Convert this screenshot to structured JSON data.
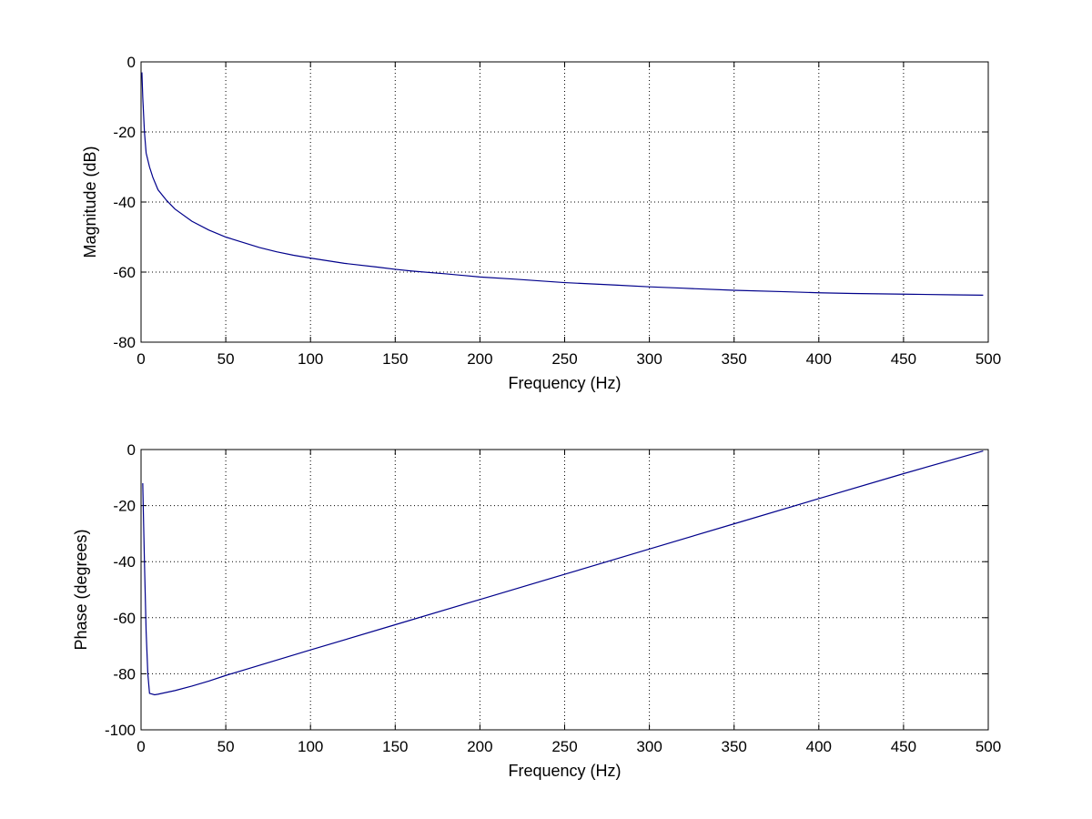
{
  "chart_data": [
    {
      "type": "line",
      "xlabel": "Frequency (Hz)",
      "ylabel": "Magnitude (dB)",
      "xlim": [
        0,
        500
      ],
      "ylim": [
        -80,
        0
      ],
      "xticks": [
        "0",
        "50",
        "100",
        "150",
        "200",
        "250",
        "300",
        "350",
        "400",
        "450",
        "500"
      ],
      "yticks": [
        "-80",
        "-60",
        "-40",
        "-20",
        "0"
      ],
      "grid": true,
      "color": "#00008b",
      "series": [
        {
          "x": [
            0.5,
            1,
            2,
            3,
            5,
            7,
            10,
            15,
            20,
            30,
            40,
            50,
            60,
            70,
            80,
            90,
            100,
            120,
            140,
            150,
            160,
            180,
            200,
            220,
            250,
            280,
            300,
            320,
            350,
            380,
            400,
            420,
            450,
            480,
            497
          ],
          "y": [
            -3,
            -10,
            -20,
            -26,
            -30,
            -33,
            -36.5,
            -39.5,
            -42,
            -45.5,
            -48,
            -50,
            -51.5,
            -53,
            -54.2,
            -55.2,
            -56,
            -57.5,
            -58.6,
            -59.2,
            -59.7,
            -60.5,
            -61.4,
            -62,
            -63,
            -63.7,
            -64.2,
            -64.6,
            -65.2,
            -65.6,
            -65.9,
            -66.1,
            -66.3,
            -66.5,
            -66.6
          ]
        }
      ]
    },
    {
      "type": "line",
      "xlabel": "Frequency (Hz)",
      "ylabel": "Phase (degrees)",
      "xlim": [
        0,
        500
      ],
      "ylim": [
        -100,
        0
      ],
      "xticks": [
        "0",
        "50",
        "100",
        "150",
        "200",
        "250",
        "300",
        "350",
        "400",
        "450",
        "500"
      ],
      "yticks": [
        "-100",
        "-80",
        "-60",
        "-40",
        "-20",
        "0"
      ],
      "grid": true,
      "color": "#00008b",
      "series": [
        {
          "x": [
            1,
            2,
            3,
            4,
            5,
            8,
            10,
            20,
            30,
            40,
            50,
            100,
            150,
            200,
            250,
            300,
            350,
            400,
            450,
            497
          ],
          "y": [
            -12,
            -40,
            -65,
            -80,
            -87,
            -87.5,
            -87.3,
            -86,
            -84.4,
            -82.6,
            -80.6,
            -71.5,
            -62.5,
            -53.5,
            -44.5,
            -35.5,
            -26.5,
            -17.5,
            -8.6,
            -0.5
          ]
        }
      ]
    }
  ]
}
